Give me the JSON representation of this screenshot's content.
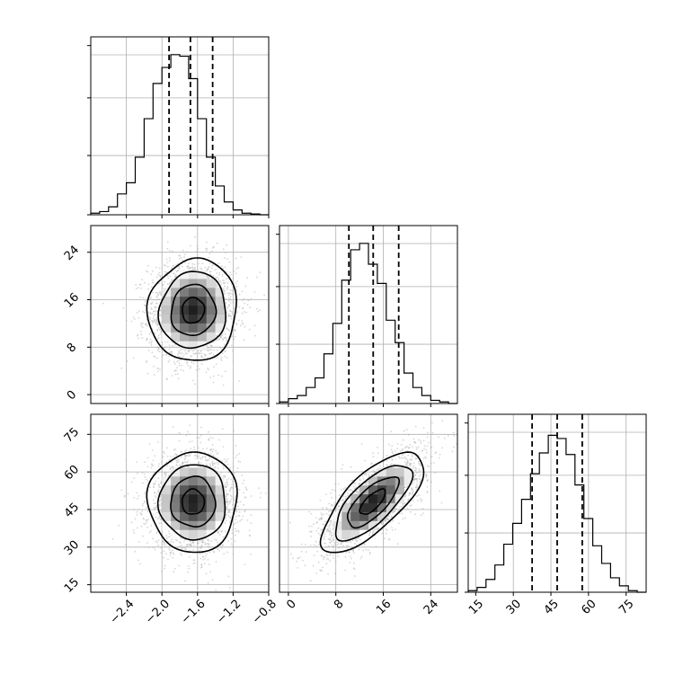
{
  "chart_data": {
    "type": "corner",
    "parameters": [
      {
        "range": [
          -2.8,
          -0.8
        ],
        "ticks": [
          -2.4,
          -2.0,
          -1.6,
          -1.2,
          -0.8
        ],
        "tick_labels": [
          "−2.4",
          "−2.0",
          "−1.6",
          "−1.2",
          "−0.8"
        ],
        "quantiles": [
          -1.92,
          -1.68,
          -1.43
        ],
        "histogram": [
          0.01,
          0.02,
          0.05,
          0.13,
          0.2,
          0.36,
          0.6,
          0.82,
          0.92,
          1.0,
          0.99,
          0.85,
          0.6,
          0.36,
          0.18,
          0.08,
          0.03,
          0.01,
          0.005,
          0.0
        ]
      },
      {
        "range": [
          -1.5,
          28.5
        ],
        "ticks": [
          0,
          8,
          16,
          24
        ],
        "tick_labels": [
          "0",
          "8",
          "16",
          "24"
        ],
        "quantiles": [
          10.2,
          14.3,
          18.6
        ],
        "histogram": [
          0.01,
          0.03,
          0.05,
          0.1,
          0.16,
          0.31,
          0.5,
          0.77,
          0.96,
          1.0,
          0.87,
          0.75,
          0.52,
          0.38,
          0.19,
          0.1,
          0.05,
          0.02,
          0.01,
          0.0
        ]
      },
      {
        "range": [
          12,
          83
        ],
        "ticks": [
          15,
          30,
          45,
          60,
          75
        ],
        "tick_labels": [
          "15",
          "30",
          "45",
          "60",
          "75"
        ],
        "quantiles": [
          37.5,
          47.5,
          57.5
        ],
        "histogram": [
          0.01,
          0.03,
          0.08,
          0.17,
          0.3,
          0.43,
          0.58,
          0.74,
          0.87,
          0.98,
          0.96,
          0.86,
          0.67,
          0.46,
          0.29,
          0.18,
          0.09,
          0.04,
          0.01,
          0.0
        ]
      }
    ],
    "pairs": [
      {
        "x_index": 0,
        "y_index": 1,
        "mean": [
          -1.65,
          14.2
        ],
        "sd": [
          0.25,
          4.3
        ],
        "corr": 0.05
      },
      {
        "x_index": 0,
        "y_index": 2,
        "mean": [
          -1.65,
          48
        ],
        "sd": [
          0.25,
          10
        ],
        "corr": 0.0
      },
      {
        "x_index": 1,
        "y_index": 2,
        "mean": [
          14.2,
          48
        ],
        "sd": [
          4.3,
          10
        ],
        "corr": 0.72
      }
    ],
    "contour_levels_sigma": [
      0.5,
      1.0,
      1.5,
      2.0
    ],
    "gridlines": true,
    "colors": {
      "line": "#000000",
      "points": "#b5b5b5",
      "grid": "#b0b0b0"
    }
  }
}
